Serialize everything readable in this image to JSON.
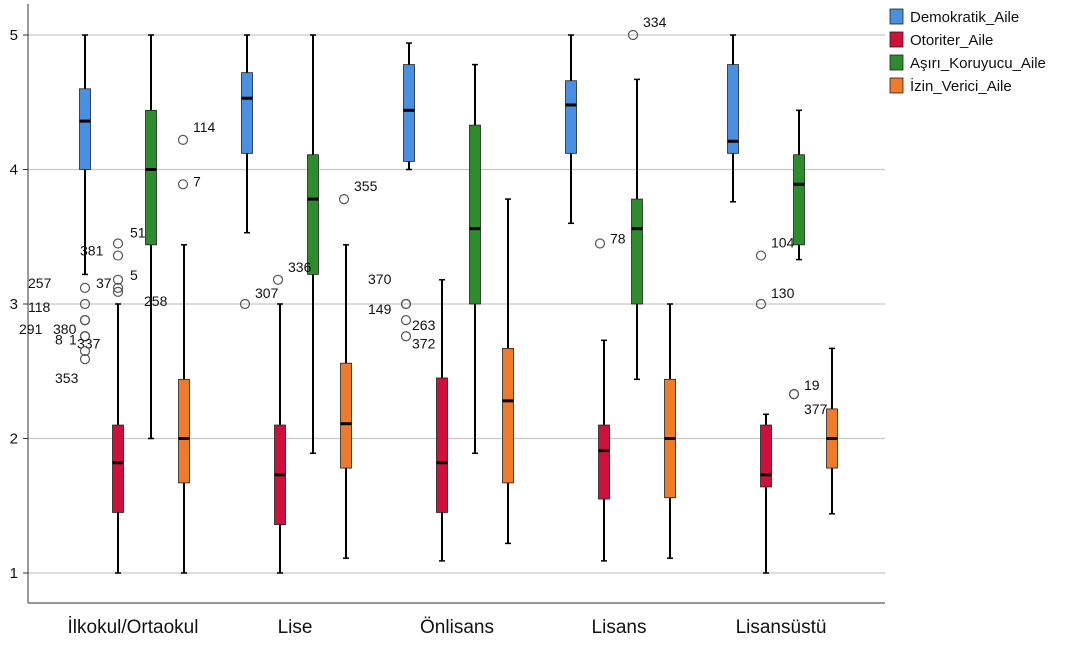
{
  "chart_data": {
    "type": "boxplot",
    "title": "",
    "xlabel": "",
    "ylabel": "",
    "ylim": [
      0.75,
      5.2
    ],
    "yticks": [
      1,
      2,
      3,
      4,
      5
    ],
    "grid": true,
    "legend_position": "top-right",
    "categories": [
      "İlkokul/Ortaokul",
      "Lise",
      "Önlisans",
      "Lisans",
      "Lisansüstü"
    ],
    "series": [
      {
        "name": "Demokratik_Aile",
        "color": "#4a90e2",
        "boxes": [
          {
            "min": 3.22,
            "q1": 4.0,
            "median": 4.36,
            "q3": 4.6,
            "max": 5.0
          },
          {
            "min": 3.53,
            "q1": 4.12,
            "median": 4.53,
            "q3": 4.72,
            "max": 5.0
          },
          {
            "min": 4.0,
            "q1": 4.06,
            "median": 4.44,
            "q3": 4.78,
            "max": 4.94
          },
          {
            "min": 3.6,
            "q1": 4.12,
            "median": 4.48,
            "q3": 4.66,
            "max": 5.0
          },
          {
            "min": 3.76,
            "q1": 4.12,
            "median": 4.21,
            "q3": 4.78,
            "max": 5.0
          }
        ]
      },
      {
        "name": "Otoriter_Aile",
        "color": "#d0103a",
        "boxes": [
          {
            "min": 1.0,
            "q1": 1.45,
            "median": 1.82,
            "q3": 2.1,
            "max": 3.0
          },
          {
            "min": 1.0,
            "q1": 1.36,
            "median": 1.73,
            "q3": 2.1,
            "max": 3.0
          },
          {
            "min": 1.09,
            "q1": 1.45,
            "median": 1.82,
            "q3": 2.45,
            "max": 3.18
          },
          {
            "min": 1.09,
            "q1": 1.55,
            "median": 1.91,
            "q3": 2.1,
            "max": 2.73
          },
          {
            "min": 1.0,
            "q1": 1.64,
            "median": 1.73,
            "q3": 2.1,
            "max": 2.18
          }
        ]
      },
      {
        "name": "Aşırı_Koruyucu_Aile",
        "color": "#2e8b2e",
        "boxes": [
          {
            "min": 2.0,
            "q1": 3.44,
            "median": 4.0,
            "q3": 4.44,
            "max": 5.0
          },
          {
            "min": 1.89,
            "q1": 3.22,
            "median": 3.78,
            "q3": 4.11,
            "max": 5.0
          },
          {
            "min": 1.89,
            "q1": 3.0,
            "median": 3.56,
            "q3": 4.33,
            "max": 4.78
          },
          {
            "min": 2.44,
            "q1": 3.0,
            "median": 3.56,
            "q3": 3.78,
            "max": 4.67
          },
          {
            "min": 3.33,
            "q1": 3.44,
            "median": 3.89,
            "q3": 4.11,
            "max": 4.44
          }
        ]
      },
      {
        "name": "İzin_Verici_Aile",
        "color": "#f07a2c",
        "boxes": [
          {
            "min": 1.0,
            "q1": 1.67,
            "median": 2.0,
            "q3": 2.44,
            "max": 3.44
          },
          {
            "min": 1.11,
            "q1": 1.78,
            "median": 2.11,
            "q3": 2.56,
            "max": 3.44
          },
          {
            "min": 1.22,
            "q1": 1.67,
            "median": 2.28,
            "q3": 2.67,
            "max": 3.78
          },
          {
            "min": 1.11,
            "q1": 1.56,
            "median": 2.0,
            "q3": 2.44,
            "max": 3.0
          },
          {
            "min": 1.44,
            "q1": 1.78,
            "median": 2.0,
            "q3": 2.22,
            "max": 2.67
          }
        ]
      }
    ],
    "outliers": [
      {
        "cat": 0,
        "series": 0,
        "value": 3.45,
        "label": "51"
      },
      {
        "cat": 0,
        "series": 0,
        "value": 3.36,
        "label": "381"
      },
      {
        "cat": 0,
        "series": 0,
        "value": 3.18,
        "label": "5"
      },
      {
        "cat": 0,
        "series": 0,
        "value": 3.12,
        "label": "37"
      },
      {
        "cat": 0,
        "series": 0,
        "value": 3.09,
        "label": "258"
      },
      {
        "cat": 0,
        "series": 0,
        "value": 3.12,
        "label": "257"
      },
      {
        "cat": 0,
        "series": 0,
        "value": 3.0,
        "label": "118"
      },
      {
        "cat": 0,
        "series": 0,
        "value": 2.88,
        "label": "380"
      },
      {
        "cat": 0,
        "series": 0,
        "value": 2.88,
        "label": "291"
      },
      {
        "cat": 0,
        "series": 0,
        "value": 2.76,
        "label": "8"
      },
      {
        "cat": 0,
        "series": 0,
        "value": 2.76,
        "label": "1"
      },
      {
        "cat": 0,
        "series": 0,
        "value": 2.76,
        "label": "337"
      },
      {
        "cat": 0,
        "series": 0,
        "value": 2.65,
        "label": ""
      },
      {
        "cat": 0,
        "series": 0,
        "value": 2.59,
        "label": "353"
      },
      {
        "cat": 0,
        "series": 2,
        "value": 4.22,
        "label": "114"
      },
      {
        "cat": 0,
        "series": 2,
        "value": 3.89,
        "label": "7"
      },
      {
        "cat": 1,
        "series": 0,
        "value": 3.18,
        "label": "336"
      },
      {
        "cat": 1,
        "series": 0,
        "value": 3.0,
        "label": "307"
      },
      {
        "cat": 1,
        "series": 3,
        "value": 3.78,
        "label": "355"
      },
      {
        "cat": 2,
        "series": 0,
        "value": 3.0,
        "label": "370"
      },
      {
        "cat": 2,
        "series": 0,
        "value": 3.0,
        "label": "149"
      },
      {
        "cat": 2,
        "series": 0,
        "value": 2.88,
        "label": "263"
      },
      {
        "cat": 2,
        "series": 0,
        "value": 2.76,
        "label": "372"
      },
      {
        "cat": 3,
        "series": 1,
        "value": 5.0,
        "label": "334"
      },
      {
        "cat": 3,
        "series": 0,
        "value": 3.45,
        "label": "78"
      },
      {
        "cat": 4,
        "series": 0,
        "value": 3.36,
        "label": "104"
      },
      {
        "cat": 4,
        "series": 0,
        "value": 3.0,
        "label": "130"
      },
      {
        "cat": 4,
        "series": 2,
        "value": 2.33,
        "label": "19"
      },
      {
        "cat": 4,
        "series": 2,
        "value": 2.33,
        "label": "377"
      }
    ]
  }
}
